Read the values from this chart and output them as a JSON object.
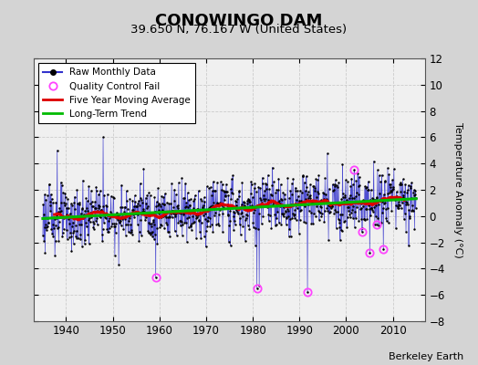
{
  "title": "CONOWINGO DAM",
  "subtitle": "39.650 N, 76.167 W (United States)",
  "ylabel": "Temperature Anomaly (°C)",
  "attribution": "Berkeley Earth",
  "years_start": 1935,
  "years_end": 2015,
  "ylim": [
    -8,
    12
  ],
  "xlim": [
    1933,
    2017
  ],
  "yticks": [
    -8,
    -6,
    -4,
    -2,
    0,
    2,
    4,
    6,
    8,
    10,
    12
  ],
  "xticks": [
    1940,
    1950,
    1960,
    1970,
    1980,
    1990,
    2000,
    2010
  ],
  "fig_bg_color": "#d4d4d4",
  "plot_bg_color": "#f0f0f0",
  "raw_line_color": "#3333cc",
  "raw_dot_color": "#000000",
  "ma_color": "#dd0000",
  "trend_color": "#00bb00",
  "qc_color": "#ff44ff",
  "grid_color": "#cccccc",
  "legend_items": [
    "Raw Monthly Data",
    "Quality Control Fail",
    "Five Year Moving Average",
    "Long-Term Trend"
  ],
  "title_fontsize": 13,
  "subtitle_fontsize": 9.5,
  "ylabel_fontsize": 8,
  "tick_fontsize": 8.5,
  "legend_fontsize": 7.5,
  "attribution_fontsize": 8
}
